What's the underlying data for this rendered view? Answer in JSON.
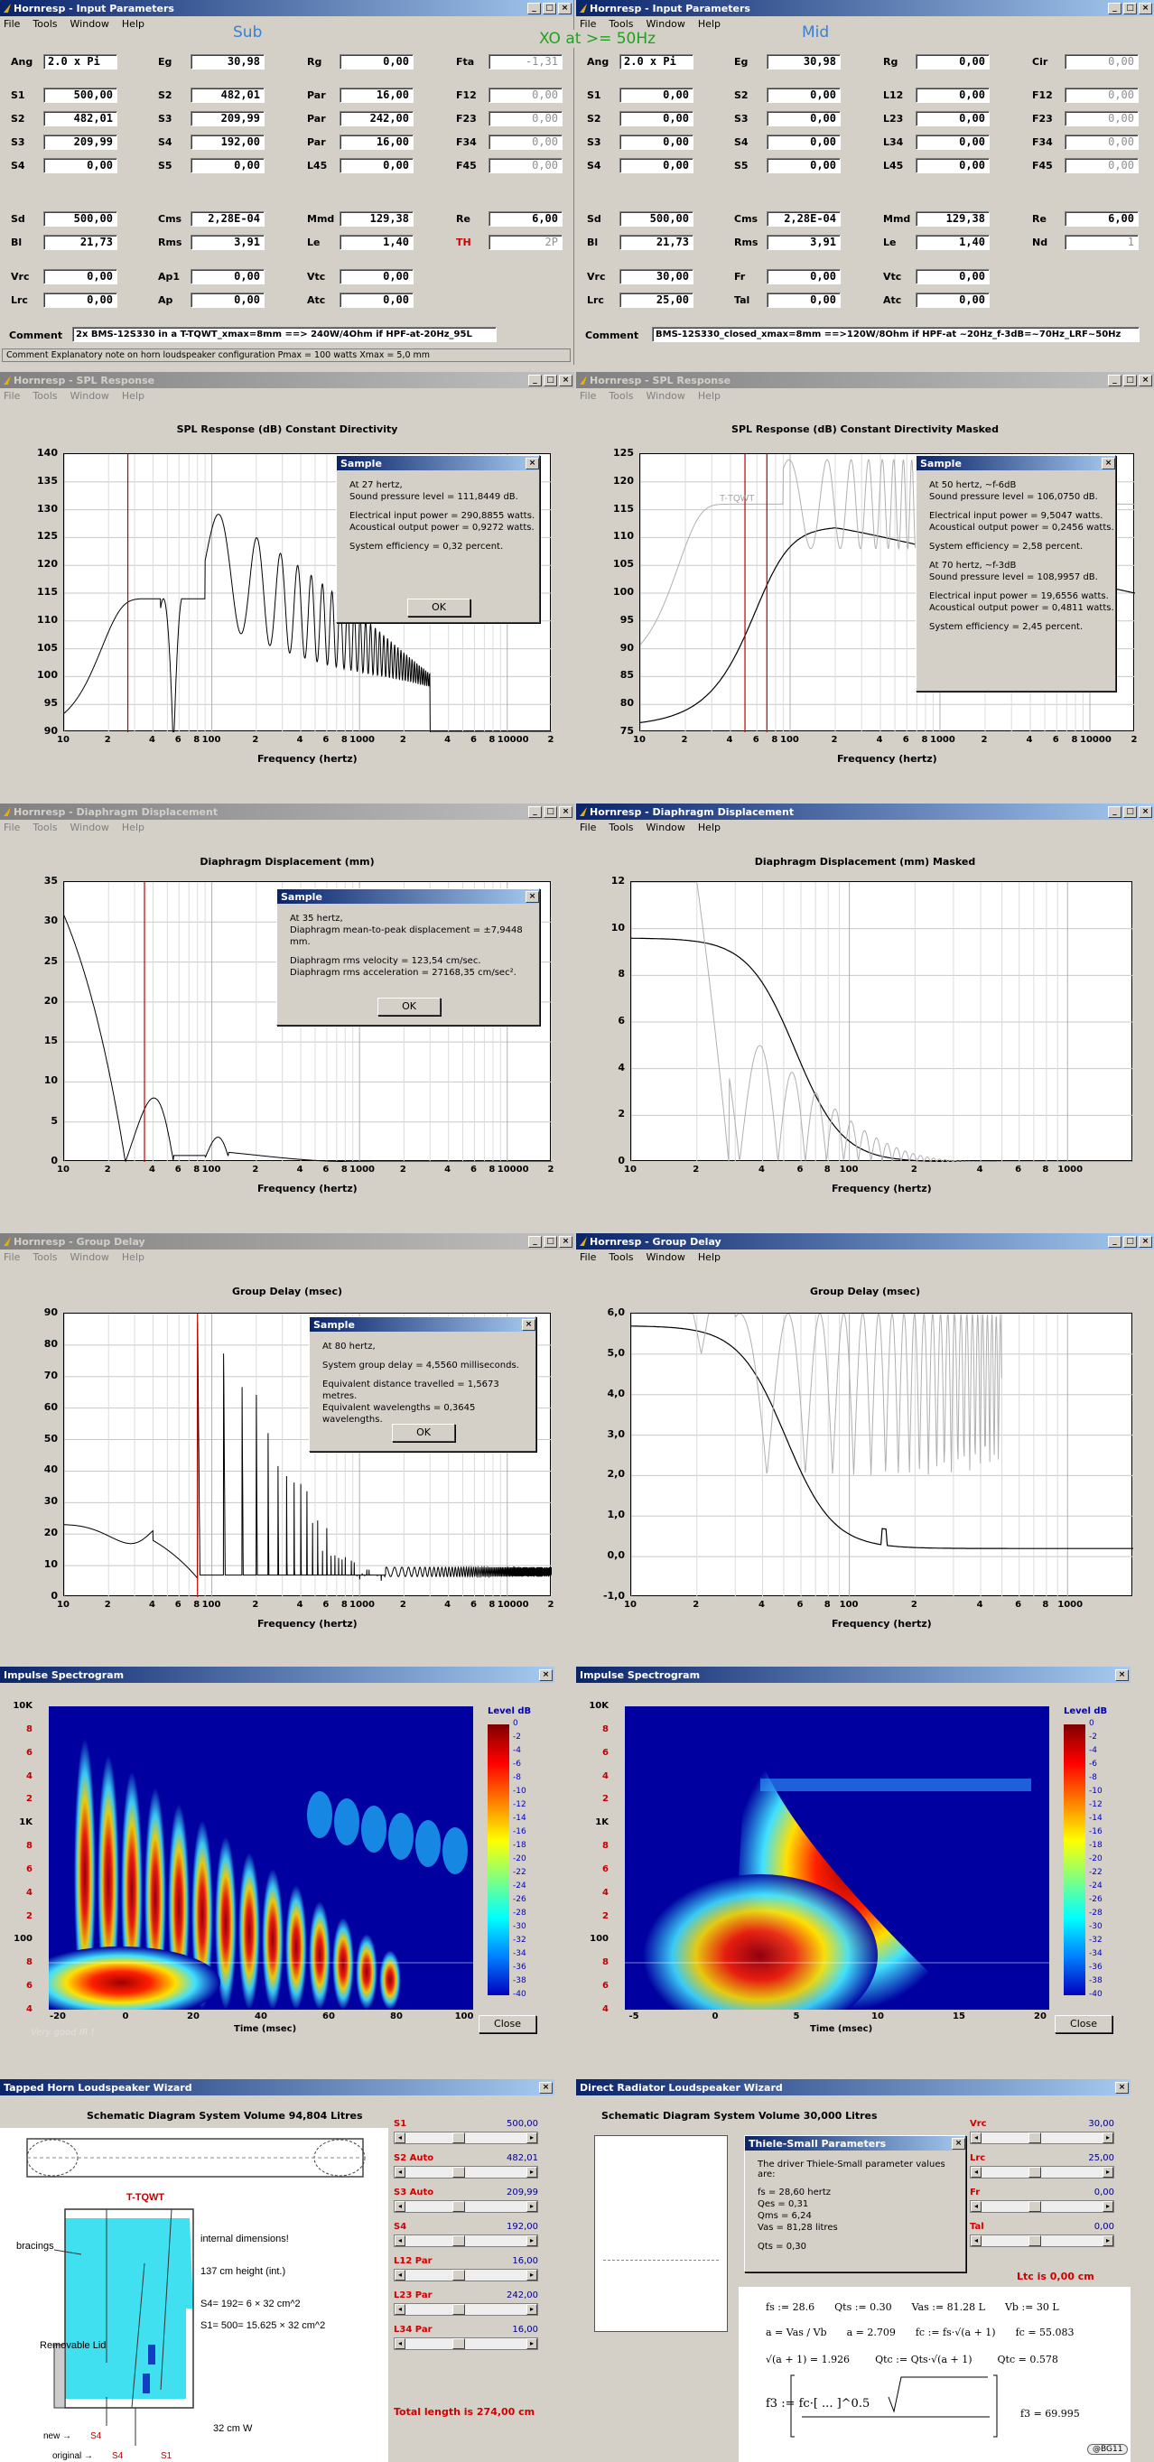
{
  "menu": [
    "File",
    "Tools",
    "Window",
    "Help"
  ],
  "window_controls": [
    "_",
    "□",
    "×"
  ],
  "input_sub": {
    "title": "Hornresp - Input Parameters",
    "heading": "Sub",
    "rows": [
      [
        [
          "Ang",
          "2.0 x Pi"
        ],
        [
          "Eg",
          "30,98"
        ],
        [
          "Rg",
          "0,00"
        ],
        [
          "Fta",
          "-1,31"
        ]
      ],
      [
        [
          "S1",
          "500,00"
        ],
        [
          "S2",
          "482,01"
        ],
        [
          "Par",
          "16,00"
        ],
        [
          "F12",
          "0,00"
        ]
      ],
      [
        [
          "S2",
          "482,01"
        ],
        [
          "S3",
          "209,99"
        ],
        [
          "Par",
          "242,00"
        ],
        [
          "F23",
          "0,00"
        ]
      ],
      [
        [
          "S3",
          "209,99"
        ],
        [
          "S4",
          "192,00"
        ],
        [
          "Par",
          "16,00"
        ],
        [
          "F34",
          "0,00"
        ]
      ],
      [
        [
          "S4",
          "0,00"
        ],
        [
          "S5",
          "0,00"
        ],
        [
          "L45",
          "0,00"
        ],
        [
          "F45",
          "0,00"
        ]
      ],
      [
        [
          "Sd",
          "500,00"
        ],
        [
          "Cms",
          "2,28E-04"
        ],
        [
          "Mmd",
          "129,38"
        ],
        [
          "Re",
          "6,00"
        ]
      ],
      [
        [
          "Bl",
          "21,73"
        ],
        [
          "Rms",
          "3,91"
        ],
        [
          "Le",
          "1,40"
        ],
        [
          "TH",
          "2P"
        ]
      ],
      [
        [
          "Vrc",
          "0,00"
        ],
        [
          "Ap1",
          "0,00"
        ],
        [
          "Vtc",
          "0,00"
        ]
      ],
      [
        [
          "Lrc",
          "0,00"
        ],
        [
          "Ap",
          "0,00"
        ],
        [
          "Atc",
          "0,00"
        ]
      ]
    ],
    "comment_label": "Comment",
    "comment": "2x BMS-12S330 in a T-TQWT_xmax=8mm ==> 240W/4Ohm if HPF-at-20Hz_95L",
    "status": "Comment   Explanatory note on horn loudspeaker configuration   Pmax = 100 watts   Xmax = 5,0 mm"
  },
  "xo_note": "XO at >= 50Hz",
  "input_mid": {
    "title": "Hornresp - Input Parameters",
    "heading": "Mid",
    "rows": [
      [
        [
          "Ang",
          "2.0 x Pi"
        ],
        [
          "Eg",
          "30,98"
        ],
        [
          "Rg",
          "0,00"
        ],
        [
          "Cir",
          "0,00"
        ]
      ],
      [
        [
          "S1",
          "0,00"
        ],
        [
          "S2",
          "0,00"
        ],
        [
          "L12",
          "0,00"
        ],
        [
          "F12",
          "0,00"
        ]
      ],
      [
        [
          "S2",
          "0,00"
        ],
        [
          "S3",
          "0,00"
        ],
        [
          "L23",
          "0,00"
        ],
        [
          "F23",
          "0,00"
        ]
      ],
      [
        [
          "S3",
          "0,00"
        ],
        [
          "S4",
          "0,00"
        ],
        [
          "L34",
          "0,00"
        ],
        [
          "F34",
          "0,00"
        ]
      ],
      [
        [
          "S4",
          "0,00"
        ],
        [
          "S5",
          "0,00"
        ],
        [
          "L45",
          "0,00"
        ],
        [
          "F45",
          "0,00"
        ]
      ],
      [
        [
          "Sd",
          "500,00"
        ],
        [
          "Cms",
          "2,28E-04"
        ],
        [
          "Mmd",
          "129,38"
        ],
        [
          "Re",
          "6,00"
        ]
      ],
      [
        [
          "Bl",
          "21,73"
        ],
        [
          "Rms",
          "3,91"
        ],
        [
          "Le",
          "1,40"
        ],
        [
          "Nd",
          "1"
        ]
      ],
      [
        [
          "Vrc",
          "30,00"
        ],
        [
          "Fr",
          "0,00"
        ],
        [
          "Vtc",
          "0,00"
        ]
      ],
      [
        [
          "Lrc",
          "25,00"
        ],
        [
          "Tal",
          "0,00"
        ],
        [
          "Atc",
          "0,00"
        ]
      ]
    ],
    "comment_label": "Comment",
    "comment": "BMS-12S330_closed_xmax=8mm ==>120W/8Ohm if HPF-at ~20Hz_f-3dB=~70Hz_LRF~50Hz"
  },
  "spl_title": "Hornresp - SPL Response",
  "spl_sub": {
    "title": "SPL Response (dB)   Constant Directivity",
    "yticks": [
      "140",
      "135",
      "130",
      "125",
      "120",
      "115",
      "110",
      "105",
      "100",
      "95",
      "90"
    ],
    "xticks": [
      "10",
      "2",
      "4",
      "6",
      "8",
      "100",
      "2",
      "4",
      "6",
      "8",
      "1000",
      "2",
      "4",
      "6",
      "8",
      "10000",
      "2"
    ],
    "xlabel": "Frequency (hertz)"
  },
  "spl_mid": {
    "title": "SPL Response (dB)   Constant Directivity   Masked",
    "yticks": [
      "125",
      "120",
      "115",
      "110",
      "105",
      "100",
      "95",
      "90",
      "85",
      "80",
      "75"
    ],
    "xticks": [
      "10",
      "2",
      "4",
      "6",
      "8",
      "100",
      "2",
      "4",
      "6",
      "8",
      "1000",
      "2",
      "4",
      "6",
      "8",
      "10000",
      "2"
    ],
    "xlabel": "Frequency (hertz)",
    "trace_label": "T-TQWT"
  },
  "dlg_spl_sub": {
    "title": "Sample",
    "lines": [
      "At 27 hertz,",
      "Sound pressure level = 111,8449 dB.",
      "Electrical input power = 290,8855 watts.",
      "Acoustical output power = 0,9272 watts.",
      "System efficiency = 0,32 percent."
    ],
    "ok": "OK"
  },
  "dlg_spl_mid": {
    "title": "Sample",
    "lines": [
      "At 50 hertz,     ~f-6dB",
      "Sound pressure level = 106,0750 dB.",
      "Electrical input power = 9,5047 watts.",
      "Acoustical output power = 0,2456 watts.",
      "System efficiency = 2,58 percent.",
      "At 70 hertz,     ~f-3dB",
      "Sound pressure level = 108,9957 dB.",
      "Electrical input power = 19,6556 watts.",
      "Acoustical output power = 0,4811 watts.",
      "System efficiency = 2,45 percent."
    ]
  },
  "disp_title": "Hornresp - Diaphragm Displacement",
  "disp_sub": {
    "title": "Diaphragm Displacement (mm)",
    "yticks": [
      "35",
      "30",
      "25",
      "20",
      "15",
      "10",
      "5",
      "0"
    ],
    "xticks": [
      "10",
      "2",
      "4",
      "6",
      "8",
      "100",
      "2",
      "4",
      "6",
      "8",
      "1000",
      "2",
      "4",
      "6",
      "8",
      "10000",
      "2"
    ],
    "xlabel": "Frequency (hertz)"
  },
  "disp_mid": {
    "title": "Diaphragm Displacement (mm)   Masked",
    "yticks": [
      "12",
      "10",
      "8",
      "6",
      "4",
      "2",
      "0"
    ],
    "xticks": [
      "10",
      "2",
      "4",
      "6",
      "8",
      "100",
      "2",
      "4",
      "6",
      "8",
      "1000"
    ],
    "xlabel": "Frequency (hertz)"
  },
  "dlg_disp": {
    "title": "Sample",
    "lines": [
      "At 35 hertz,",
      "Diaphragm mean-to-peak displacement = ±7,9448 mm.",
      "Diaphragm rms velocity = 123,54 cm/sec.",
      "Diaphragm rms acceleration = 27168,35 cm/sec²."
    ],
    "ok": "OK"
  },
  "gd_title": "Hornresp - Group Delay",
  "gd_sub": {
    "title": "Group Delay (msec)",
    "yticks": [
      "90",
      "80",
      "70",
      "60",
      "50",
      "40",
      "30",
      "20",
      "10",
      "0"
    ],
    "xticks": [
      "10",
      "2",
      "4",
      "6",
      "8",
      "100",
      "2",
      "4",
      "6",
      "8",
      "1000",
      "2",
      "4",
      "6",
      "8",
      "10000",
      "2"
    ],
    "xlabel": "Frequency (hertz)"
  },
  "gd_mid": {
    "title": "Group Delay (msec)",
    "yticks": [
      "6,0",
      "5,0",
      "4,0",
      "3,0",
      "2,0",
      "1,0",
      "0,0",
      "-1,0"
    ],
    "xticks": [
      "10",
      "2",
      "4",
      "6",
      "8",
      "100",
      "2",
      "4",
      "6",
      "8",
      "1000"
    ],
    "xlabel": "Frequency (hertz)"
  },
  "dlg_gd": {
    "title": "Sample",
    "lines": [
      "At 80 hertz,",
      "System group delay = 4,5560 milliseconds.",
      "Equivalent distance travelled = 1,5673 metres.",
      "Equivalent wavelengths = 0,3645 wavelengths."
    ],
    "ok": "OK"
  },
  "spec_title": "Impulse Spectrogram",
  "spec_sub": {
    "yticks": [
      "10K",
      "8",
      "6",
      "4",
      "2",
      "1K",
      "8",
      "6",
      "4",
      "2",
      "100",
      "8",
      "6",
      "4"
    ],
    "xticks": [
      "-20",
      "0",
      "20",
      "40",
      "60",
      "80",
      "100"
    ],
    "xlabel": "Time (msec)",
    "level": "Level  dB",
    "levels": [
      "0",
      "-2",
      "-4",
      "-6",
      "-8",
      "-10",
      "-12",
      "-14",
      "-16",
      "-18",
      "-20",
      "-22",
      "-24",
      "-26",
      "-28",
      "-30",
      "-32",
      "-34",
      "-36",
      "-38",
      "-40"
    ],
    "close": "Close",
    "note": "Very good IR !"
  },
  "spec_mid": {
    "yticks": [
      "10K",
      "8",
      "6",
      "4",
      "2",
      "1K",
      "8",
      "6",
      "4",
      "2",
      "100",
      "8",
      "6",
      "4"
    ],
    "xticks": [
      "-5",
      "0",
      "5",
      "10",
      "15",
      "20"
    ],
    "xlabel": "Time (msec)",
    "level": "Level  dB",
    "levels": [
      "0",
      "-2",
      "-4",
      "-6",
      "-8",
      "-10",
      "-12",
      "-14",
      "-16",
      "-18",
      "-20",
      "-22",
      "-24",
      "-26",
      "-28",
      "-30",
      "-32",
      "-34",
      "-36",
      "-38",
      "-40"
    ],
    "close": "Close"
  },
  "wiz_th": {
    "title": "Tapped Horn Loudspeaker Wizard",
    "header": "Schematic Diagram   System Volume 94,804 Litres",
    "sliders": [
      [
        "S1",
        "500,00"
      ],
      [
        "S2 Auto",
        "482,01"
      ],
      [
        "S3 Auto",
        "209,99"
      ],
      [
        "S4",
        "192,00"
      ],
      [
        "L12 Par",
        "16,00"
      ],
      [
        "L23 Par",
        "242,00"
      ],
      [
        "L34 Par",
        "16,00"
      ]
    ],
    "total": "Total length is 274,00 cm",
    "diagram": {
      "name": "T-TQWT",
      "int": "internal dimensions!",
      "height": "137 cm height  (int.)",
      "s4": "S4= 192= 6 × 32 cm^2",
      "s1": "S1= 500= 15.625 × 32 cm^2",
      "bracings": "bracings",
      "lid": "Removable\nLid",
      "width": "32 cm  W",
      "new": "new →",
      "orig": "original →",
      "s4tag": "S4",
      "s1tag": "S1"
    }
  },
  "wiz_dr": {
    "title": "Direct Radiator Loudspeaker Wizard",
    "header": "Schematic Diagram   System Volume 30,000 Litres",
    "sliders": [
      [
        "Vrc",
        "30,00"
      ],
      [
        "Lrc",
        "25,00"
      ],
      [
        "Fr",
        "0,00"
      ],
      [
        "Tal",
        "0,00"
      ]
    ],
    "ltc": "Ltc is 0,00 cm"
  },
  "ts": {
    "title": "Thiele-Small Parameters",
    "intro": "The driver Thiele-Small parameter values are:",
    "lines": [
      "fs = 28,60 hertz",
      "Qes = 0,31",
      "Qms = 6,24",
      "Vas = 81,28 litres",
      "Qts = 0,30"
    ]
  },
  "math": {
    "l1": [
      "fs := 28.6",
      "Qts := 0.30",
      "Vas := 81.28 L",
      "Vb := 30 L"
    ],
    "l2": [
      "a = Vas / Vb",
      "a = 2.709",
      "fc := fs·√(a + 1)",
      "fc = 55.083"
    ],
    "l3": [
      "√(a + 1) = 1.926",
      "Qtc := Qts·√(a + 1)",
      "Qtc = 0.578"
    ],
    "f3": "f3 := fc·[ ... ]^0.5",
    "f3val": "f3 = 69.995"
  },
  "sig": "@BG11"
}
